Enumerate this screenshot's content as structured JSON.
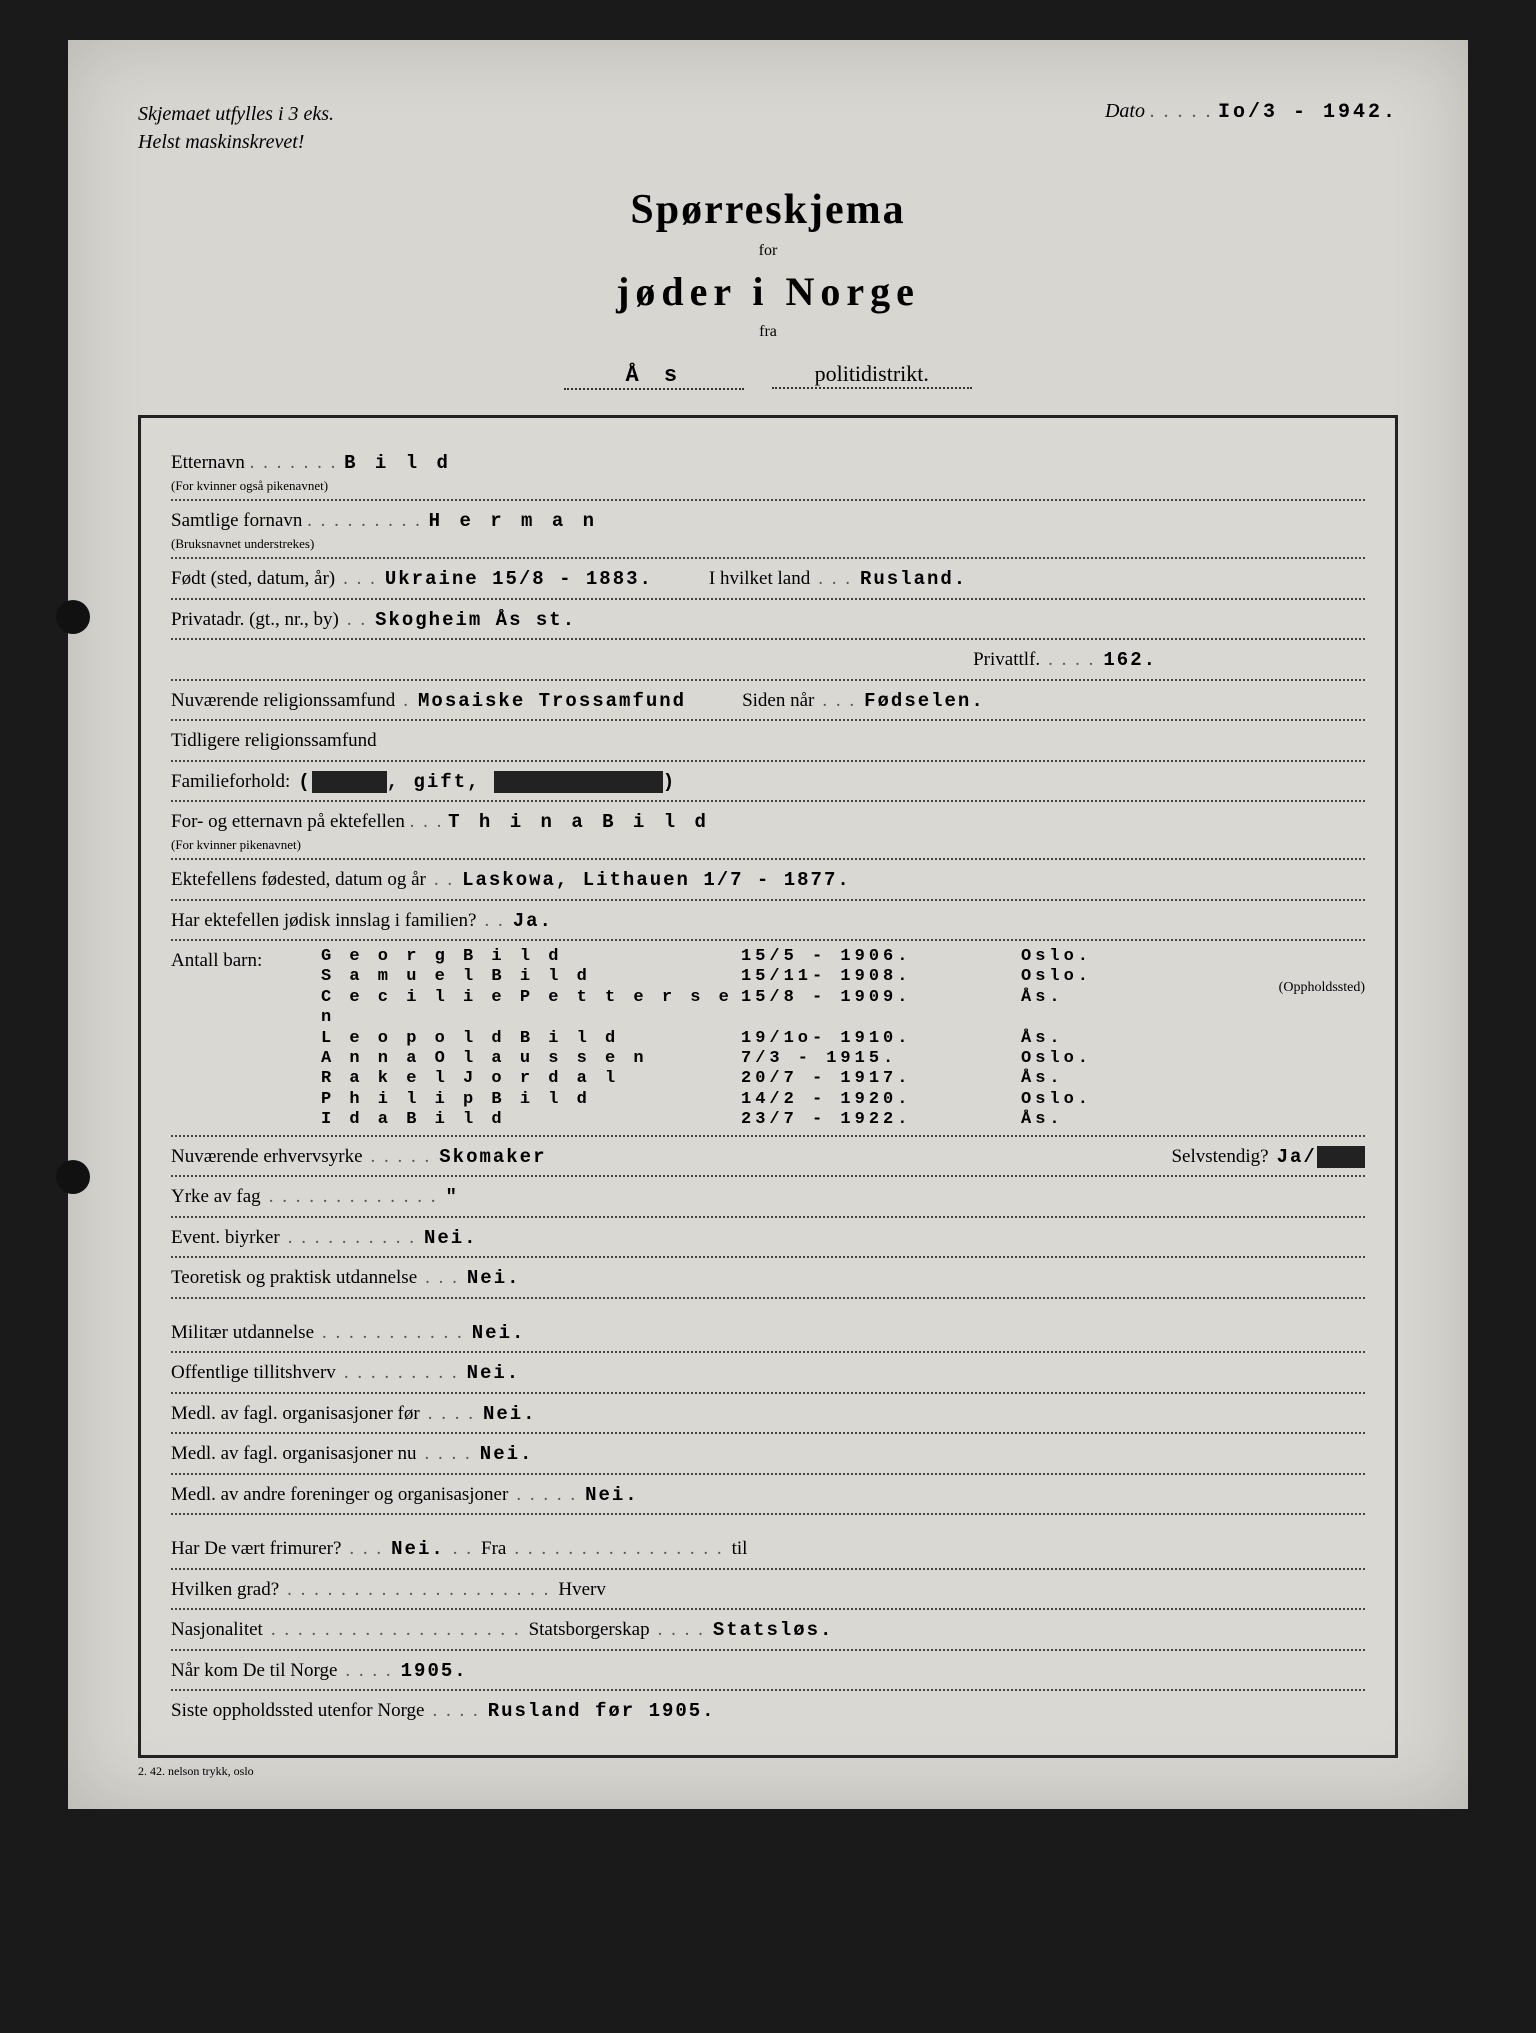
{
  "header": {
    "note_line1": "Skjemaet utfylles i 3 eks.",
    "note_line2": "Helst maskinskrevet!",
    "dato_label": "Dato",
    "dato_value": "Io/3 - 1942."
  },
  "title": {
    "main": "Spørreskjema",
    "for": "for",
    "sub": "jøder i Norge",
    "fra": "fra",
    "district_value": "Å s",
    "district_label": "politidistrikt."
  },
  "form": {
    "etternavn_lbl": "Etternavn",
    "etternavn_sub": "(For kvinner også pikenavnet)",
    "etternavn_val": "B i l d",
    "fornavn_lbl": "Samtlige fornavn",
    "fornavn_sub": "(Bruksnavnet understrekes)",
    "fornavn_val": "H e r m a n",
    "fodt_lbl": "Født (sted, datum, år)",
    "fodt_val": "Ukraine 15/8 - 1883.",
    "hvilket_land_lbl": "I hvilket land",
    "hvilket_land_val": "Rusland.",
    "privatadr_lbl": "Privatadr. (gt., nr., by)",
    "privatadr_val": "Skogheim Ås st.",
    "privattlf_lbl": "Privattlf.",
    "privattlf_val": "162.",
    "nuv_rel_lbl": "Nuværende religionssamfund",
    "nuv_rel_val": "Mosaiske Trossamfund",
    "siden_nar_lbl": "Siden når",
    "siden_nar_val": "Fødselen.",
    "tidl_rel_lbl": "Tidligere religionssamfund",
    "famforhold_lbl": "Familieforhold:",
    "famforhold_val": "(Ugift, gift, XXXXXXXXXXXX)",
    "ektefelle_lbl": "For- og etternavn på ektefellen",
    "ektefelle_sub": "(For kvinner pikenavnet)",
    "ektefelle_val": "T h i n a  B i l d",
    "ekt_fodested_lbl": "Ektefellens fødested, datum og år",
    "ekt_fodested_val": "Laskowa, Lithauen  1/7 - 1877.",
    "ekt_jodisk_lbl": "Har ektefellen jødisk innslag i familien?",
    "ekt_jodisk_val": "Ja.",
    "antall_barn_lbl": "Antall barn:",
    "oppholdssted_lbl": "(Oppholdssted)",
    "children": [
      {
        "name": "Georg Bild",
        "date": "15/5 - 1906.",
        "place": "Oslo."
      },
      {
        "name": "Samuel Bild",
        "date": "15/11- 1908.",
        "place": "Oslo."
      },
      {
        "name": "Cecilie Pettersen",
        "date": "15/8 - 1909.",
        "place": "Ås."
      },
      {
        "name": "Leopold Bild",
        "date": "19/1o- 1910.",
        "place": "Ås."
      },
      {
        "name": "Anna Olaussen",
        "date": "7/3 - 1915.",
        "place": "Oslo."
      },
      {
        "name": "Rakel Jordal",
        "date": "20/7 - 1917.",
        "place": "Ås."
      },
      {
        "name": "Philip Bild",
        "date": "14/2 - 1920.",
        "place": "Oslo."
      },
      {
        "name": "Ida Bild",
        "date": "23/7 - 1922.",
        "place": "Ås."
      }
    ],
    "erhverv_lbl": "Nuværende erhvervsyrke",
    "erhverv_val": "Skomaker",
    "selvstendig_lbl": "Selvstendig?",
    "selvstendig_val": "Ja/Nei",
    "yrke_fag_lbl": "Yrke av fag",
    "yrke_fag_val": "\"",
    "biyrker_lbl": "Event. biyrker",
    "biyrker_val": "Nei.",
    "utdannelse_lbl": "Teoretisk og praktisk utdannelse",
    "utdannelse_val": "Nei.",
    "militar_lbl": "Militær utdannelse",
    "militar_val": "Nei.",
    "tillitshverv_lbl": "Offentlige tillitshverv",
    "tillitshverv_val": "Nei.",
    "fagl_for_lbl": "Medl. av fagl. organisasjoner før",
    "fagl_for_val": "Nei.",
    "fagl_nu_lbl": "Medl. av fagl. organisasjoner nu",
    "fagl_nu_val": "Nei.",
    "andre_for_lbl": "Medl. av andre foreninger og organisasjoner",
    "andre_for_val": "Nei.",
    "frimurer_lbl": "Har De vært frimurer?",
    "frimurer_val": "Nei.",
    "fra_lbl": "Fra",
    "til_lbl": "til",
    "grad_lbl": "Hvilken grad?",
    "hverv_lbl": "Hverv",
    "nasjonalitet_lbl": "Nasjonalitet",
    "statsborgerskap_lbl": "Statsborgerskap",
    "statsborgerskap_val": "Statsløs.",
    "nar_kom_lbl": "Når kom De til Norge",
    "nar_kom_val": "1905.",
    "siste_opph_lbl": "Siste oppholdssted utenfor Norge",
    "siste_opph_val": "Rusland før 1905."
  },
  "footer": "2. 42. nelson trykk, oslo"
}
